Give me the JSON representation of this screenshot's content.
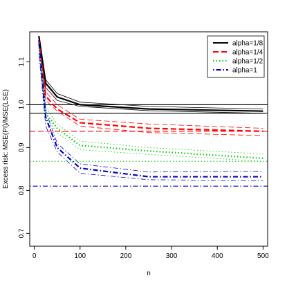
{
  "chart_data": {
    "type": "line",
    "title": "",
    "xlabel": "n",
    "ylabel": "Excess risk: MSE(PI)/MSE(LSE)",
    "xlim": [
      -10,
      510
    ],
    "ylim": [
      0.67,
      1.17
    ],
    "xticks": [
      0,
      100,
      200,
      300,
      400,
      500
    ],
    "yticks": [
      0.7,
      0.8,
      0.9,
      1.0,
      1.1
    ],
    "grid": false,
    "legend_position": "top-right",
    "x": [
      10,
      25,
      50,
      100,
      250,
      500
    ],
    "series": [
      {
        "name": "alpha=1/8",
        "color": "#000000",
        "dash": "solid",
        "mean": [
          1.16,
          1.05,
          1.018,
          1.0,
          0.99,
          0.985
        ],
        "lower": [
          1.16,
          1.04,
          1.01,
          0.996,
          0.986,
          0.98
        ],
        "upper": [
          1.16,
          1.058,
          1.026,
          1.006,
          0.996,
          0.99
        ],
        "reference": 0.98,
        "reference2": 1.0
      },
      {
        "name": "alpha=1/4",
        "color": "#ff0000",
        "dash": "dashed",
        "mean": [
          1.15,
          1.02,
          0.99,
          0.958,
          0.945,
          0.938
        ],
        "lower": [
          1.14,
          1.01,
          0.985,
          0.95,
          0.935,
          0.928
        ],
        "upper": [
          1.16,
          1.03,
          1.0,
          0.966,
          0.955,
          0.945
        ],
        "reference": 0.938
      },
      {
        "name": "alpha=1/2",
        "color": "#00cc00",
        "dash": "dotted",
        "mean": [
          1.14,
          0.98,
          0.945,
          0.905,
          0.892,
          0.875
        ],
        "lower": [
          1.12,
          0.97,
          0.935,
          0.895,
          0.884,
          0.868
        ],
        "upper": [
          1.15,
          0.995,
          0.955,
          0.915,
          0.9,
          0.885
        ],
        "reference": 0.868
      },
      {
        "name": "alpha=1",
        "color": "#0000cc",
        "dash": "dotdash",
        "mean": [
          1.15,
          0.97,
          0.9,
          0.852,
          0.832,
          0.832
        ],
        "lower": [
          1.12,
          0.95,
          0.89,
          0.84,
          0.825,
          0.823
        ],
        "upper": [
          1.16,
          0.985,
          0.91,
          0.862,
          0.843,
          0.845
        ],
        "reference": 0.81
      }
    ]
  }
}
